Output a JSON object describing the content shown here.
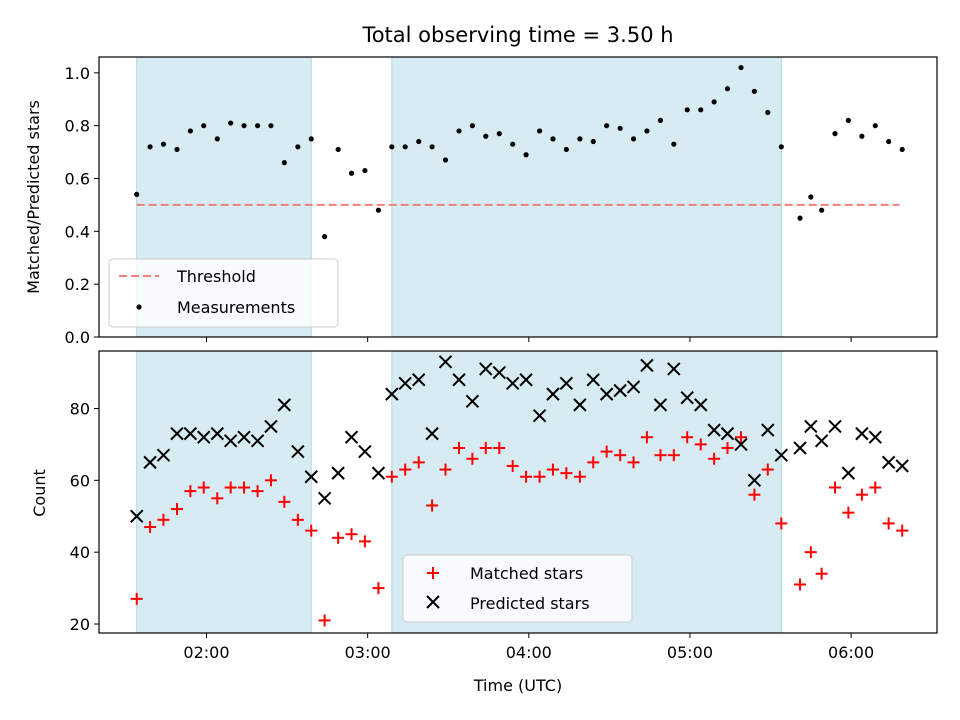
{
  "chart_data": [
    {
      "type": "scatter",
      "title": "Total observing time = 3.50 h",
      "ylabel": "Matched/Predicted stars",
      "ylim": [
        0.0,
        1.06
      ],
      "yticks": [
        "0.0",
        "0.2",
        "0.4",
        "0.6",
        "0.8",
        "1.0"
      ],
      "legend": {
        "placement": "lower-left",
        "entries": [
          "Threshold",
          "Measurements"
        ]
      },
      "shaded_intervals_hours": [
        [
          1.567,
          2.65
        ],
        [
          3.15,
          5.567
        ]
      ],
      "shade_color": "#add8e6",
      "threshold": {
        "name": "Threshold",
        "value": 0.5,
        "x_range": [
          1.567,
          6.3
        ],
        "color": "#f08080",
        "style": "dashed"
      },
      "series": [
        {
          "name": "Measurements",
          "color": "#000000",
          "marker": "dot",
          "x": [
            1.567,
            1.65,
            1.733,
            1.817,
            1.9,
            1.983,
            2.067,
            2.15,
            2.233,
            2.317,
            2.4,
            2.483,
            2.567,
            2.65,
            2.733,
            2.817,
            2.9,
            2.983,
            3.067,
            3.15,
            3.233,
            3.317,
            3.4,
            3.483,
            3.567,
            3.65,
            3.733,
            3.817,
            3.9,
            3.983,
            4.067,
            4.15,
            4.233,
            4.317,
            4.4,
            4.483,
            4.567,
            4.65,
            4.733,
            4.817,
            4.9,
            4.983,
            5.067,
            5.15,
            5.233,
            5.317,
            5.4,
            5.483,
            5.567,
            5.683,
            5.75,
            5.817,
            5.9,
            5.983,
            6.067,
            6.15,
            6.233,
            6.317
          ],
          "y": [
            0.54,
            0.72,
            0.73,
            0.71,
            0.78,
            0.8,
            0.75,
            0.81,
            0.8,
            0.8,
            0.8,
            0.66,
            0.72,
            0.75,
            0.38,
            0.71,
            0.62,
            0.63,
            0.48,
            0.72,
            0.72,
            0.74,
            0.72,
            0.67,
            0.78,
            0.8,
            0.76,
            0.77,
            0.73,
            0.69,
            0.78,
            0.75,
            0.71,
            0.75,
            0.74,
            0.8,
            0.79,
            0.75,
            0.78,
            0.82,
            0.73,
            0.86,
            0.86,
            0.89,
            0.94,
            1.02,
            0.93,
            0.85,
            0.72,
            0.45,
            0.53,
            0.48,
            0.77,
            0.82,
            0.76,
            0.8,
            0.74,
            0.71
          ]
        }
      ]
    },
    {
      "type": "scatter",
      "xlabel": "Time (UTC)",
      "ylabel": "Count",
      "xlim_hours": [
        1.333,
        6.533
      ],
      "ylim": [
        17.5,
        96
      ],
      "xticks": [
        "02:00",
        "03:00",
        "04:00",
        "05:00",
        "06:00"
      ],
      "xtick_hours": [
        2,
        3,
        4,
        5,
        6
      ],
      "yticks": [
        "20",
        "40",
        "60",
        "80"
      ],
      "legend": {
        "placement": "lower-center",
        "entries": [
          "Matched stars",
          "Predicted stars"
        ]
      },
      "shaded_intervals_hours": [
        [
          1.567,
          2.65
        ],
        [
          3.15,
          5.567
        ]
      ],
      "shade_color": "#add8e6",
      "series": [
        {
          "name": "Matched stars",
          "color": "#ff0000",
          "marker": "plus",
          "x": [
            1.567,
            1.65,
            1.733,
            1.817,
            1.9,
            1.983,
            2.067,
            2.15,
            2.233,
            2.317,
            2.4,
            2.483,
            2.567,
            2.65,
            2.733,
            2.817,
            2.9,
            2.983,
            3.067,
            3.15,
            3.233,
            3.317,
            3.4,
            3.483,
            3.567,
            3.65,
            3.733,
            3.817,
            3.9,
            3.983,
            4.067,
            4.15,
            4.233,
            4.317,
            4.4,
            4.483,
            4.567,
            4.65,
            4.733,
            4.817,
            4.9,
            4.983,
            5.067,
            5.15,
            5.233,
            5.317,
            5.4,
            5.483,
            5.567,
            5.683,
            5.75,
            5.817,
            5.9,
            5.983,
            6.067,
            6.15,
            6.233,
            6.317
          ],
          "y": [
            27,
            47,
            49,
            52,
            57,
            58,
            55,
            58,
            58,
            57,
            60,
            54,
            49,
            46,
            21,
            44,
            45,
            43,
            30,
            61,
            63,
            65,
            53,
            63,
            69,
            66,
            69,
            69,
            64,
            61,
            61,
            63,
            62,
            61,
            65,
            68,
            67,
            65,
            72,
            67,
            67,
            72,
            70,
            66,
            69,
            72,
            56,
            63,
            48,
            31,
            40,
            34,
            58,
            51,
            56,
            58,
            48,
            46
          ]
        },
        {
          "name": "Predicted stars",
          "color": "#000000",
          "marker": "x",
          "x": [
            1.567,
            1.65,
            1.733,
            1.817,
            1.9,
            1.983,
            2.067,
            2.15,
            2.233,
            2.317,
            2.4,
            2.483,
            2.567,
            2.65,
            2.733,
            2.817,
            2.9,
            2.983,
            3.067,
            3.15,
            3.233,
            3.317,
            3.4,
            3.483,
            3.567,
            3.65,
            3.733,
            3.817,
            3.9,
            3.983,
            4.067,
            4.15,
            4.233,
            4.317,
            4.4,
            4.483,
            4.567,
            4.65,
            4.733,
            4.817,
            4.9,
            4.983,
            5.067,
            5.15,
            5.233,
            5.317,
            5.4,
            5.483,
            5.567,
            5.683,
            5.75,
            5.817,
            5.9,
            5.983,
            6.067,
            6.15,
            6.233,
            6.317
          ],
          "y": [
            50,
            65,
            67,
            73,
            73,
            72,
            73,
            71,
            72,
            71,
            75,
            81,
            68,
            61,
            55,
            62,
            72,
            68,
            62,
            84,
            87,
            88,
            73,
            93,
            88,
            82,
            91,
            90,
            87,
            88,
            78,
            84,
            87,
            81,
            88,
            84,
            85,
            86,
            92,
            81,
            91,
            83,
            81,
            74,
            73,
            70,
            60,
            74,
            67,
            69,
            75,
            71,
            75,
            62,
            73,
            72,
            65,
            64
          ]
        }
      ]
    }
  ]
}
